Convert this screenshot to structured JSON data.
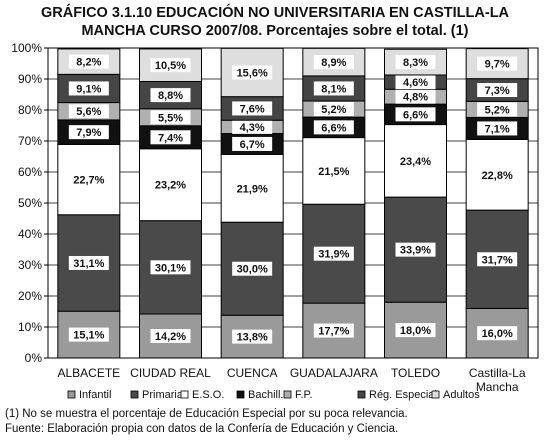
{
  "title_line1": "GRÁFICO 3.1.10 EDUCACIÓN NO UNIVERSITARIA EN CASTILLA-LA",
  "title_line2": "MANCHA CURSO 2007/08. Porcentajes sobre el total. (1)",
  "footnote": "(1) No se muestra el porcentaje de Educación Especial por su poca relevancia.",
  "source": "Fuente: Elaboración propia con datos de la Confería de Educación y Ciencia.",
  "chart_data": {
    "type": "bar",
    "stacked": true,
    "percent": true,
    "categories": [
      [
        "ALBACETE"
      ],
      [
        "CIUDAD REAL"
      ],
      [
        "CUENCA"
      ],
      [
        "GUADALAJARA"
      ],
      [
        "TOLEDO"
      ],
      [
        "Castilla-La",
        "Mancha"
      ]
    ],
    "ylim": [
      0,
      100
    ],
    "yticks": [
      "0%",
      "10%",
      "20%",
      "30%",
      "40%",
      "50%",
      "60%",
      "70%",
      "80%",
      "90%",
      "100%"
    ],
    "grid": true,
    "legend_position": "bottom",
    "series": [
      {
        "name": "Infantil",
        "color": "#9a9a9a",
        "values": [
          15.1,
          14.2,
          13.8,
          17.7,
          18.0,
          16.0
        ],
        "labels": [
          "15,1%",
          "14,2%",
          "13,8%",
          "17,7%",
          "18,0%",
          "16,0%"
        ]
      },
      {
        "name": "Primaria",
        "color": "#4a4a4a",
        "values": [
          31.1,
          30.1,
          30.0,
          31.9,
          33.9,
          31.7
        ],
        "labels": [
          "31,1%",
          "30,1%",
          "30,0%",
          "31,9%",
          "33,9%",
          "31,7%"
        ]
      },
      {
        "name": "E.S.O.",
        "color": "#ffffff",
        "values": [
          22.7,
          23.2,
          21.9,
          21.5,
          23.4,
          22.8
        ],
        "labels": [
          "22,7%",
          "23,2%",
          "21,9%",
          "21,5%",
          "23,4%",
          "22,8%"
        ]
      },
      {
        "name": "Bachill.",
        "color": "#111111",
        "values": [
          7.9,
          7.4,
          6.7,
          6.6,
          6.6,
          7.1
        ],
        "labels": [
          "7,9%",
          "7,4%",
          "6,7%",
          "6,6%",
          "6,6%",
          "7,1%"
        ]
      },
      {
        "name": "F.P.",
        "color": "#b0b0b0",
        "values": [
          5.6,
          5.5,
          4.3,
          5.2,
          4.8,
          5.2
        ],
        "labels": [
          "5,6%",
          "5,5%",
          "4,3%",
          "5,2%",
          "4,8%",
          "5,2%"
        ]
      },
      {
        "name": "Rég. Especial",
        "color": "#454545",
        "values": [
          9.1,
          8.8,
          7.6,
          8.1,
          4.6,
          7.3
        ],
        "labels": [
          "9,1%",
          "8,8%",
          "7,6%",
          "8,1%",
          "4,6%",
          "7,3%"
        ]
      },
      {
        "name": "Adultos",
        "color": "#dedede",
        "values": [
          8.2,
          10.5,
          15.6,
          8.9,
          8.3,
          9.7
        ],
        "labels": [
          "8,2%",
          "10,5%",
          "15,6%",
          "8,9%",
          "8,3%",
          "9,7%"
        ]
      }
    ]
  }
}
